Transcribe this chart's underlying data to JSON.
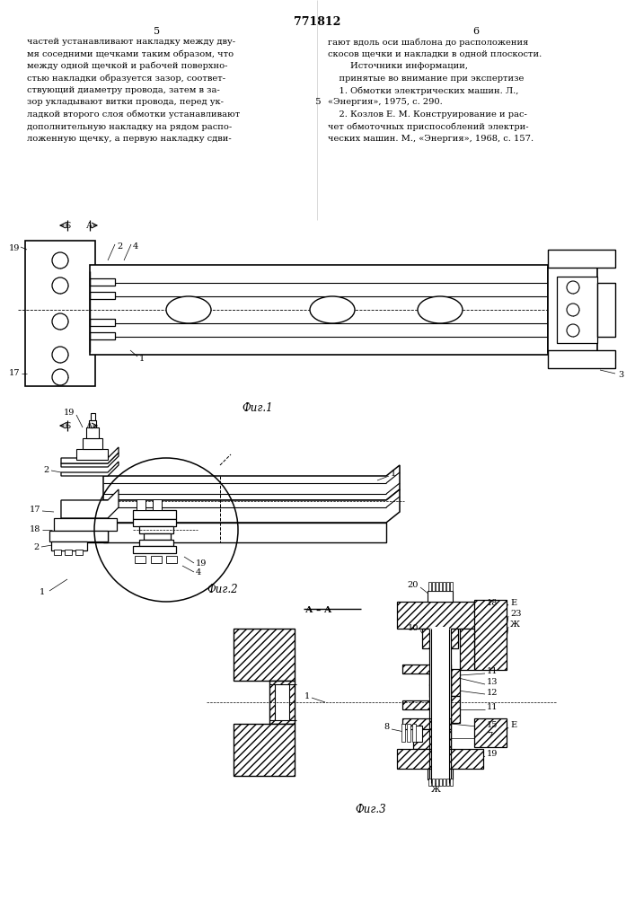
{
  "patent_number": "771812",
  "page_left": "5",
  "page_right": "6",
  "text_left_lines": [
    "частей устанавливают накладку между дву-",
    "мя соседними щечками таким образом, что",
    "между одной щечкой и рабочей поверхно-",
    "стью накладки образуется зазор, соответ-",
    "ствующий диаметру провода, затем в за-",
    "зор укладывают витки провода, перед ук-",
    "ладкой второго слоя обмотки устанавливают",
    "дополнительную накладку на рядом распо-",
    "ложенную щечку, а первую накладку сдви-"
  ],
  "text_right_lines": [
    "гают вдоль оси шаблона до расположения",
    "скосов щечки и накладки в одной плоскости.",
    "        Источники информации,",
    "    принятые во внимание при экспертизе",
    "    1. Обмотки электрических машин. Л.,",
    "«Энергия», 1975, с. 290.",
    "    2. Козлов Е. М. Конструирование и рас-",
    "чет обмоточных приспособлений электри-",
    "ческих машин. М., «Энергия», 1968, с. 157."
  ],
  "mid_line_num": 5,
  "mid_line_row": 5,
  "fig1_caption": "Фиг.1",
  "fig2_caption": "Фиг.2",
  "fig3_caption": "Фиг.3",
  "bg_color": "#ffffff"
}
